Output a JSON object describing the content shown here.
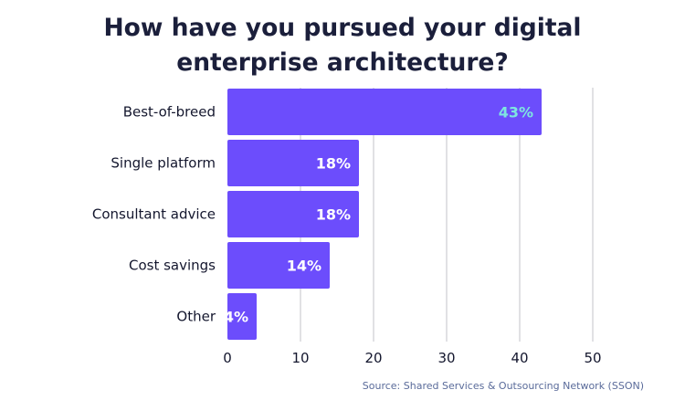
{
  "chart_data": {
    "type": "bar",
    "orientation": "horizontal",
    "title": "How have you pursued your digital enterprise architecture?",
    "categories": [
      "Best-of-breed",
      "Single platform",
      "Consultant advice",
      "Cost savings",
      "Other"
    ],
    "values": [
      43,
      18,
      18,
      14,
      4
    ],
    "value_labels": [
      "43%",
      "18%",
      "18%",
      "14%",
      "4%"
    ],
    "xticks": [
      0,
      10,
      20,
      30,
      40,
      50
    ],
    "xlim": [
      0,
      50
    ],
    "grid": true,
    "source": "Source: Shared Services & Outsourcing Network (SSON)",
    "colors": {
      "bar": "#6c4dfc",
      "label_default": "#ffffff",
      "label_highlight": "#7ee6e0",
      "title": "#1b1f3b",
      "grid": "#d7d7dc",
      "source": "#5a6b9a"
    }
  }
}
